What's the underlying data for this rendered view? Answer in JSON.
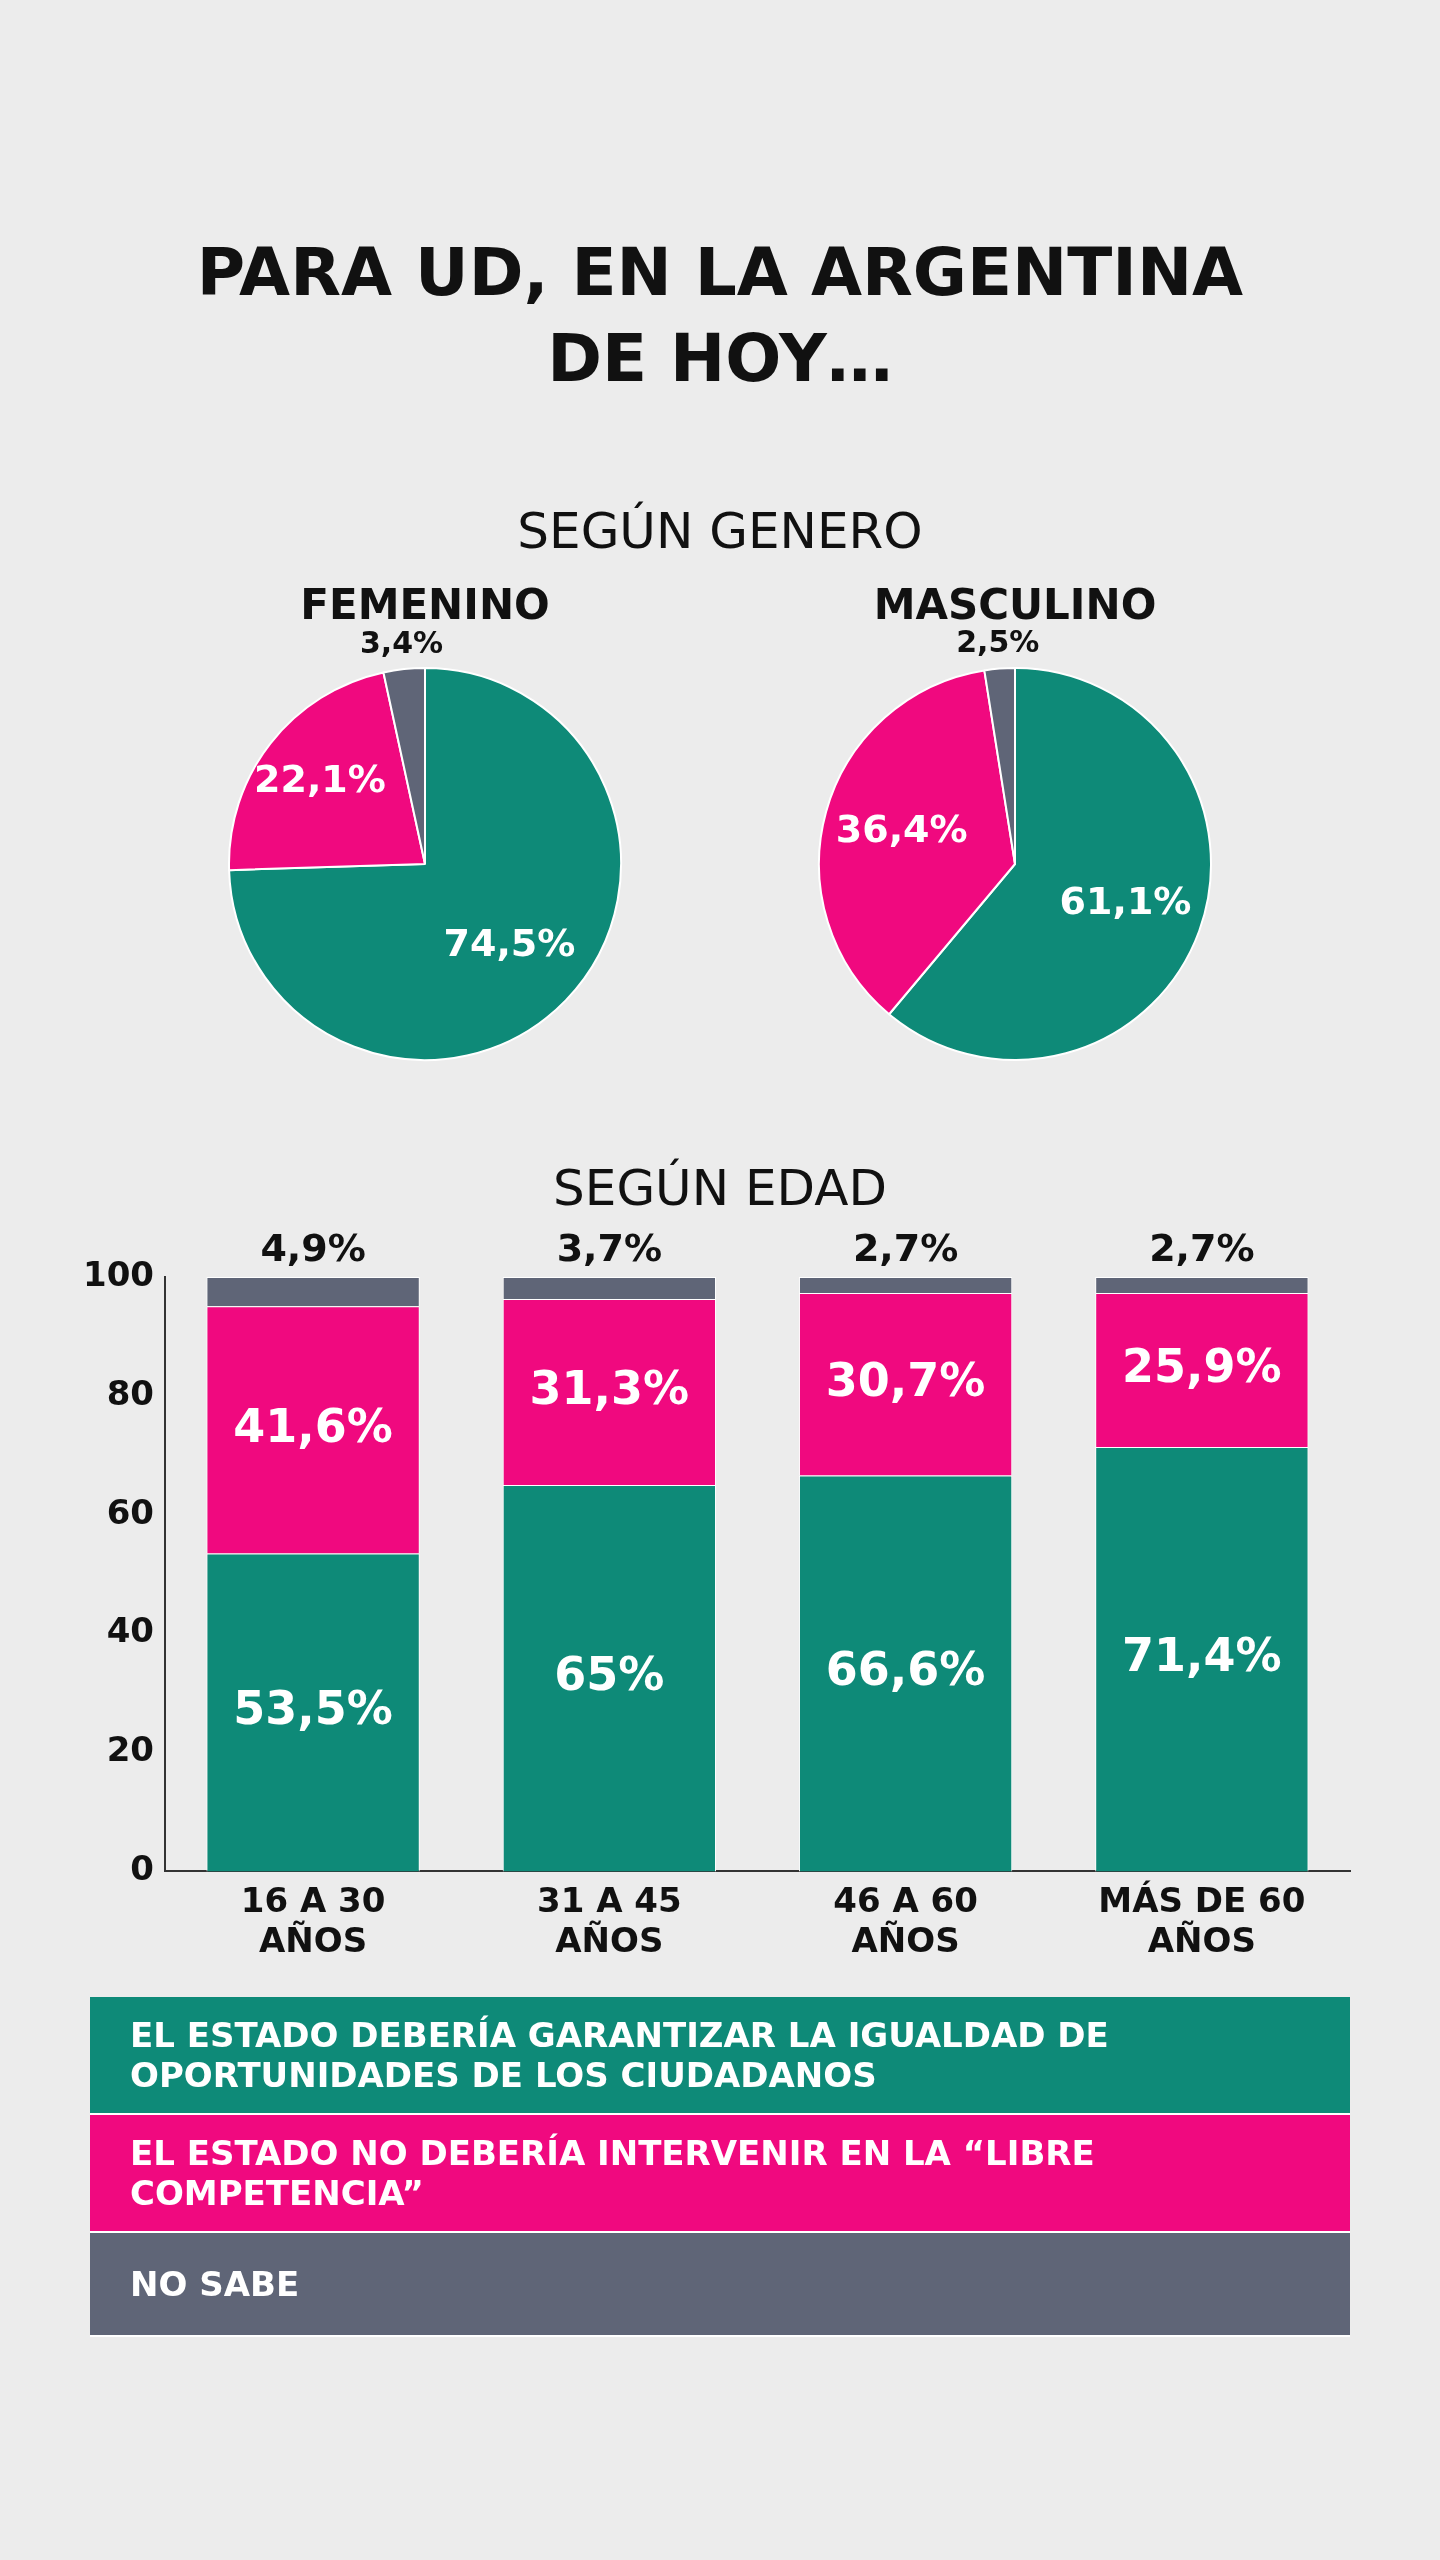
{
  "chart_data": [
    {
      "type": "pie",
      "title": "FEMENINO",
      "annotations": [
        "PARA UD, EN LA ARGENTINA DE HOY…",
        "SEGÚN GENERO"
      ],
      "categories": [
        null,
        null,
        null
      ],
      "values": [
        74.5,
        22.1,
        3.4
      ],
      "value_labels": [
        "74,5%",
        "22,1%",
        "3,4%"
      ],
      "colors": [
        "#0e8a78",
        "#f0097f",
        "#5f6577"
      ]
    },
    {
      "type": "pie",
      "title": "MASCULINO",
      "categories": [
        null,
        null,
        null
      ],
      "values": [
        61.1,
        36.4,
        2.5
      ],
      "value_labels": [
        "61,1%",
        "36,4%",
        "2,5%"
      ],
      "colors": [
        "#0e8a78",
        "#f0097f",
        "#5f6577"
      ]
    },
    {
      "type": "bar",
      "title": "SEGÚN EDAD",
      "stacked": true,
      "categories": [
        "16 A 30 AÑOS",
        "31 A 45 AÑOS",
        "46 A 60 AÑOS",
        "MÁS DE 60 AÑOS"
      ],
      "series": [
        {
          "name": "EL ESTADO DEBERÍA GARANTIZAR LA IGUALDAD DE OPORTUNIDADES DE LOS CIUDADANOS",
          "color": "#0e8a78",
          "values": [
            53.5,
            65,
            66.6,
            71.4
          ],
          "value_labels": [
            "53,5%",
            "65%",
            "66,6%",
            "71,4%"
          ]
        },
        {
          "name": "EL ESTADO NO DEBERÍA INTERVENIR EN LA “LIBRE COMPETENCIA”",
          "color": "#f0097f",
          "values": [
            41.6,
            31.3,
            30.7,
            25.9
          ],
          "value_labels": [
            "41,6%",
            "31,3%",
            "30,7%",
            "25,9%"
          ]
        },
        {
          "name": "NO SABE",
          "color": "#5f6577",
          "values": [
            4.9,
            3.7,
            2.7,
            2.7
          ],
          "value_labels": [
            "4,9%",
            "3,7%",
            "2,7%",
            "2,7%"
          ]
        }
      ],
      "ylim": [
        0,
        100
      ],
      "yticks": [
        0,
        20,
        40,
        60,
        80,
        100
      ],
      "grid": false,
      "legend": "bottom"
    }
  ]
}
